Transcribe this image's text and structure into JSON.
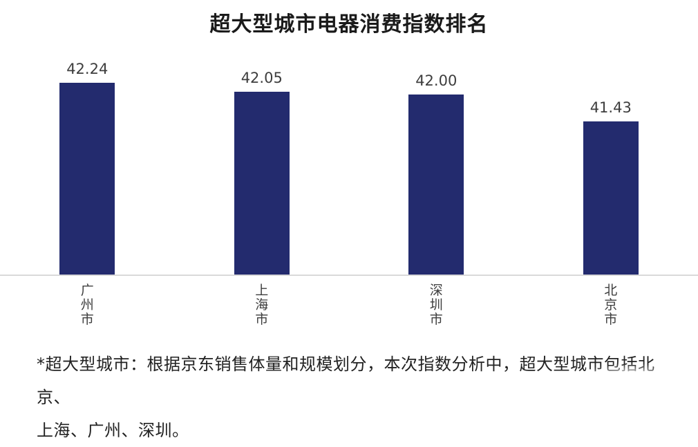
{
  "chart_data": {
    "type": "bar",
    "title": "超大型城市电器消费指数排名",
    "categories": [
      "广州市",
      "上海市",
      "深圳市",
      "北京市"
    ],
    "values": [
      42.24,
      42.05,
      42.0,
      41.43
    ],
    "value_labels": [
      "42.24",
      "42.05",
      "42.00",
      "41.43"
    ],
    "xlabel": "",
    "ylabel": "",
    "ylim": [
      38.2,
      43.2
    ],
    "grid": false,
    "legend": "none",
    "bar_color": "#232B6E",
    "value_label_color": "#3d3d3d",
    "category_label_color": "#3d3d3d",
    "axis_line_color": "#d9d9d9",
    "title_color": "#1a1a1a"
  },
  "footnote": {
    "line1": "*超大型城市：根据京东销售体量和规模划分，本次指数分析中，超大型城市包括北京、",
    "line2": "上海、广州、深圳。"
  }
}
